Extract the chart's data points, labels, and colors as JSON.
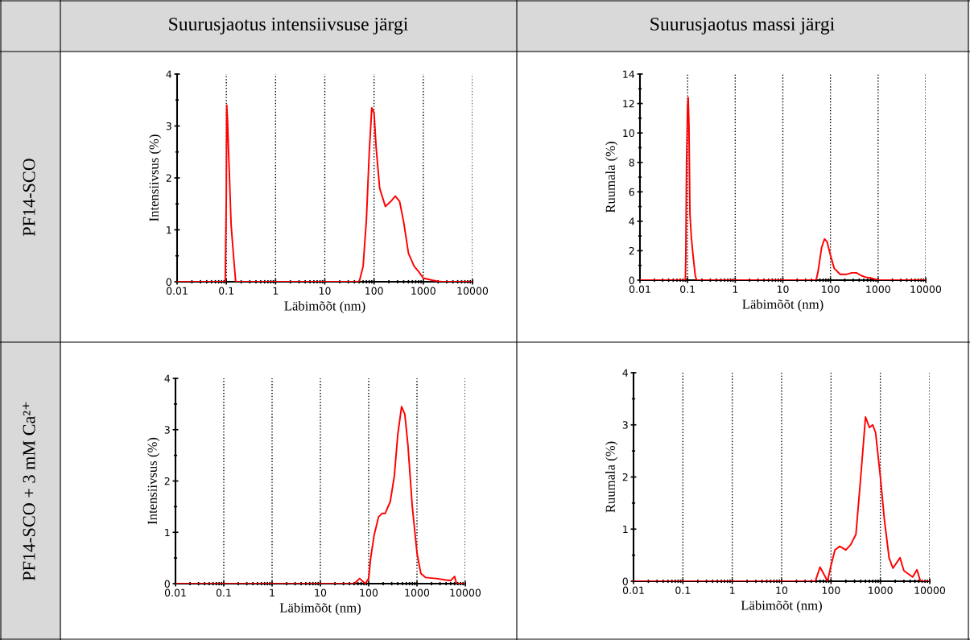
{
  "chart_data": [
    {
      "type": "line",
      "title": "Suurusjaotus intensiivsuse järgi",
      "xlabel": "Läbimõõt (nm)",
      "ylabel": "Intensiivsus (%)",
      "annotations": [
        "PF14-SCO"
      ],
      "log": "x",
      "xlim": [
        0.01,
        10000
      ],
      "xticks": [
        0.01,
        0.1,
        1,
        10,
        100,
        1000,
        10000
      ],
      "ylim": [
        0,
        4
      ],
      "yticks": [
        0,
        1,
        2,
        3,
        4
      ],
      "grid": "x",
      "marker": "none",
      "line_style": "solid",
      "series": [
        {
          "color": "#ff0000",
          "x": [
            0.01,
            0.095,
            0.1,
            0.102,
            0.106,
            0.11,
            0.115,
            0.125,
            0.14,
            0.155,
            50,
            60,
            70,
            80,
            90,
            100,
            110,
            130,
            170,
            220,
            270,
            330,
            400,
            500,
            650,
            800,
            1000,
            1500,
            2000,
            2500,
            10000
          ],
          "values": [
            0,
            0,
            1.7,
            3.4,
            3.1,
            2.6,
            2.1,
            1.1,
            0.5,
            0,
            0,
            0.3,
            1.2,
            2.5,
            3.35,
            3.25,
            2.6,
            1.8,
            1.45,
            1.55,
            1.65,
            1.55,
            1.15,
            0.55,
            0.3,
            0.2,
            0.07,
            0.03,
            0.01,
            0,
            0
          ]
        }
      ]
    },
    {
      "type": "line",
      "title": "Suurusjaotus massi järgi",
      "xlabel": "Läbimõõt (nm)",
      "ylabel": "Ruumala (%)",
      "log": "x",
      "xlim": [
        0.01,
        10000
      ],
      "xticks": [
        0.01,
        0.1,
        1,
        10,
        100,
        1000,
        10000
      ],
      "ylim": [
        0,
        14
      ],
      "yticks": [
        0,
        2,
        4,
        6,
        8,
        10,
        12,
        14
      ],
      "grid": "x",
      "marker": "none",
      "line_style": "solid",
      "series": [
        {
          "color": "#ff0000",
          "x": [
            0.01,
            0.09,
            0.092,
            0.095,
            0.1,
            0.103,
            0.107,
            0.112,
            0.12,
            0.13,
            0.145,
            0.155,
            50,
            55,
            65,
            75,
            85,
            100,
            120,
            160,
            220,
            280,
            350,
            450,
            550,
            700,
            900,
            1000,
            10000
          ],
          "values": [
            0,
            0,
            2,
            7.8,
            11.8,
            12.4,
            10.5,
            4.5,
            2.9,
            1.7,
            0.3,
            0,
            0,
            0.6,
            2.2,
            2.8,
            2.6,
            1.7,
            0.8,
            0.4,
            0.4,
            0.5,
            0.5,
            0.3,
            0.2,
            0.15,
            0.05,
            0,
            0
          ]
        }
      ]
    },
    {
      "type": "line",
      "xlabel": "Läbimõõt (nm)",
      "ylabel": "Intensiivsus (%)",
      "annotations": [
        "PF14-SCO + 3 mM Ca²⁺"
      ],
      "log": "x",
      "xlim": [
        0.01,
        10000
      ],
      "xticks": [
        0.01,
        0.1,
        1,
        10,
        100,
        1000,
        10000
      ],
      "ylim": [
        0,
        4
      ],
      "yticks": [
        0,
        1,
        2,
        3,
        4
      ],
      "grid": "x",
      "marker": "none",
      "line_style": "solid",
      "series": [
        {
          "color": "#ff0000",
          "x": [
            0.01,
            50,
            65,
            85,
            100,
            110,
            130,
            160,
            190,
            220,
            280,
            340,
            400,
            480,
            560,
            650,
            800,
            1000,
            1200,
            1500,
            2500,
            4000,
            5000,
            6000,
            6600,
            10000
          ],
          "values": [
            0,
            0,
            0.1,
            0,
            0.1,
            0.5,
            0.95,
            1.3,
            1.37,
            1.37,
            1.6,
            2.1,
            2.9,
            3.45,
            3.3,
            2.7,
            1.5,
            0.6,
            0.2,
            0.12,
            0.1,
            0.07,
            0.06,
            0.14,
            0,
            0
          ]
        }
      ]
    },
    {
      "type": "line",
      "xlabel": "Läbimõõt (nm)",
      "ylabel": "Ruumala (%)",
      "log": "x",
      "xlim": [
        0.01,
        10000
      ],
      "xticks": [
        0.01,
        0.1,
        1,
        10,
        100,
        1000,
        10000
      ],
      "ylim": [
        0,
        4
      ],
      "yticks": [
        0,
        1,
        2,
        3,
        4
      ],
      "grid": "x",
      "marker": "none",
      "line_style": "solid",
      "series": [
        {
          "color": "#ff0000",
          "x": [
            0.01,
            48,
            60,
            75,
            85,
            100,
            120,
            150,
            200,
            250,
            320,
            400,
            500,
            600,
            700,
            800,
            1000,
            1200,
            1500,
            1800,
            2500,
            3000,
            4500,
            5500,
            6500,
            10000
          ],
          "values": [
            0,
            0,
            0.27,
            0.1,
            0,
            0.3,
            0.6,
            0.67,
            0.6,
            0.7,
            0.9,
            2.0,
            3.15,
            2.95,
            3.0,
            2.85,
            2.0,
            1.2,
            0.45,
            0.25,
            0.45,
            0.2,
            0.08,
            0.22,
            0,
            0
          ]
        }
      ]
    }
  ]
}
